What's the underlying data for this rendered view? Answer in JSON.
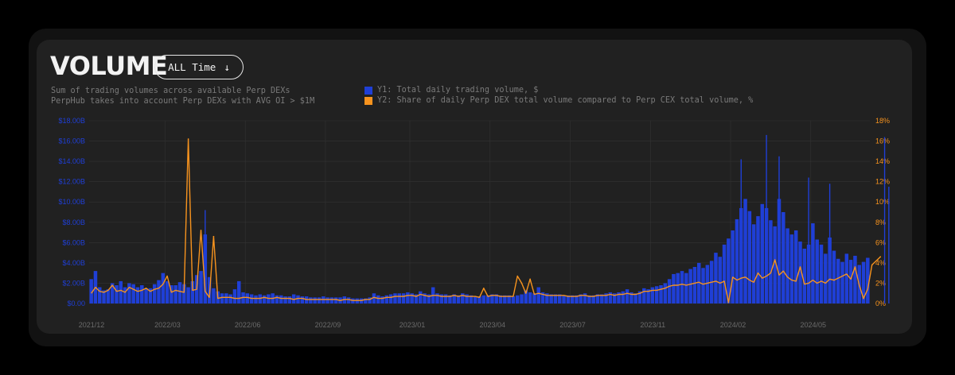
{
  "header": {
    "title": "VOLUME",
    "range_label": "ALL Time",
    "range_icon": "arrow-down-icon",
    "description_1": "Sum of trading volumes across available Perp DEXs",
    "description_2": "PerpHub takes into account Perp DEXs with AVG OI > $1M"
  },
  "legend": {
    "y1_label": "Y1: Total daily trading volume, $",
    "y2_label": "Y2: Share of daily Perp DEX total volume compared to Perp CEX total volume, %"
  },
  "colors": {
    "volume": "#1f3fd6",
    "share": "#f7931e",
    "grid": "#333333",
    "tick_x": "#6b6b6b"
  },
  "chart_data": {
    "type": "bar",
    "y_ticks": [
      "$0.00",
      "$2.00B",
      "$4.00B",
      "$6.00B",
      "$8.00B",
      "$10.00B",
      "$12.00B",
      "$14.00B",
      "$16.00B",
      "$18.00B"
    ],
    "y2_ticks": [
      "0%",
      "2%",
      "4%",
      "6%",
      "8%",
      "10%",
      "12%",
      "14%",
      "16%",
      "18%"
    ],
    "ylim": [
      0,
      18
    ],
    "y2lim": [
      0,
      18
    ],
    "x_ticks": [
      "2021/12",
      "2022/03",
      "2022/06",
      "2022/09",
      "2023/01",
      "2023/04",
      "2023/07",
      "2023/11",
      "2024/02",
      "2024/05"
    ],
    "x_tick_index": [
      0,
      18,
      37,
      56,
      76,
      95,
      114,
      133,
      152,
      171
    ],
    "series": [
      {
        "name": "Y1: Total daily trading volume, $",
        "axis": "y1",
        "unit": "$B",
        "values": [
          2.4,
          3.2,
          1.6,
          1.3,
          1.4,
          2.0,
          1.8,
          2.2,
          1.6,
          2.0,
          1.9,
          1.6,
          1.8,
          1.5,
          1.5,
          1.9,
          2.3,
          3.0,
          2.2,
          1.8,
          1.8,
          2.1,
          1.9,
          1.6,
          2.2,
          2.8,
          3.2,
          6.8,
          2.6,
          1.5,
          1.2,
          1.0,
          1.0,
          0.9,
          1.4,
          2.2,
          1.1,
          1.0,
          0.9,
          0.8,
          0.9,
          0.8,
          0.9,
          1.0,
          0.8,
          0.8,
          0.7,
          0.7,
          0.9,
          0.8,
          0.7,
          0.7,
          0.6,
          0.6,
          0.6,
          0.7,
          0.6,
          0.6,
          0.6,
          0.6,
          0.7,
          0.6,
          0.5,
          0.5,
          0.5,
          0.5,
          0.6,
          1.0,
          0.8,
          0.7,
          0.8,
          0.9,
          1.0,
          1.0,
          1.0,
          1.1,
          1.0,
          0.9,
          1.2,
          1.0,
          0.9,
          1.6,
          1.0,
          0.9,
          0.9,
          0.8,
          0.9,
          0.8,
          1.0,
          0.9,
          0.8,
          0.7,
          0.7,
          0.8,
          0.8,
          0.9,
          0.9,
          0.8,
          0.8,
          0.8,
          0.7,
          0.8,
          0.9,
          1.3,
          1.1,
          1.0,
          1.6,
          1.1,
          1.0,
          0.9,
          0.9,
          0.9,
          0.8,
          0.8,
          0.8,
          0.8,
          0.9,
          1.0,
          0.8,
          0.8,
          0.9,
          0.9,
          1.0,
          1.1,
          1.0,
          1.1,
          1.2,
          1.4,
          1.1,
          1.0,
          1.2,
          1.5,
          1.4,
          1.6,
          1.7,
          1.8,
          2.0,
          2.4,
          2.9,
          3.0,
          3.2,
          3.0,
          3.4,
          3.6,
          4.0,
          3.5,
          3.8,
          4.2,
          5.0,
          4.6,
          5.8,
          6.4,
          7.2,
          8.3,
          9.4,
          10.3,
          9.1,
          7.8,
          8.6,
          9.8,
          9.4,
          8.2,
          7.6,
          10.3,
          9.0,
          7.4,
          6.8,
          7.2,
          6.1,
          5.4,
          5.8,
          7.9,
          6.3,
          5.8,
          4.9,
          6.5,
          5.2,
          4.4,
          4.1,
          4.9,
          4.3,
          4.7,
          3.8,
          4.1,
          4.5
        ]
      },
      {
        "name": "Y2: Share of daily Perp DEX total volume compared to Perp CEX total volume, %",
        "axis": "y2",
        "unit": "%",
        "values": [
          1.0,
          1.6,
          1.2,
          1.1,
          1.3,
          1.8,
          1.2,
          1.3,
          1.1,
          1.6,
          1.4,
          1.2,
          1.3,
          1.2,
          1.2,
          1.4,
          1.5,
          1.9,
          1.2,
          1.1,
          1.3,
          1.2,
          1.1,
          1.2,
          1.3,
          1.4,
          1.5,
          1.2,
          0.6,
          0.5,
          0.5,
          0.6,
          0.6,
          0.6,
          0.5,
          0.5,
          0.6,
          0.6,
          0.5,
          0.5,
          0.5,
          0.6,
          0.5,
          0.5,
          0.6,
          0.5,
          0.5,
          0.5,
          0.4,
          0.5,
          0.5,
          0.4,
          0.4,
          0.4,
          0.4,
          0.4,
          0.4,
          0.4,
          0.4,
          0.3,
          0.4,
          0.4,
          0.3,
          0.3,
          0.3,
          0.4,
          0.4,
          0.6,
          0.5,
          0.5,
          0.6,
          0.6,
          0.7,
          0.7,
          0.7,
          0.8,
          0.8,
          0.7,
          0.9,
          0.8,
          0.7,
          0.8,
          0.8,
          0.7,
          0.7,
          0.7,
          0.8,
          0.7,
          0.8,
          0.7,
          0.7,
          0.7,
          0.6,
          0.7,
          0.7,
          0.8,
          0.8,
          0.7,
          0.7,
          0.7,
          0.7,
          0.7,
          0.8,
          1.0,
          0.9,
          0.9,
          1.0,
          0.9,
          0.8,
          0.8,
          0.8,
          0.8,
          0.8,
          0.7,
          0.7,
          0.7,
          0.8,
          0.8,
          0.7,
          0.7,
          0.8,
          0.8,
          0.8,
          0.9,
          0.8,
          0.9,
          0.9,
          1.0,
          0.9,
          0.9,
          1.0,
          1.2,
          1.2,
          1.3,
          1.3,
          1.4,
          1.5,
          1.7,
          1.8,
          1.8,
          1.9,
          1.8,
          1.9,
          2.0,
          2.1,
          1.9,
          2.0,
          2.1,
          2.2,
          2.0,
          2.2,
          2.4,
          2.6,
          2.3,
          2.5,
          2.6,
          2.3,
          2.1,
          2.2,
          2.5,
          2.7,
          3.0,
          3.4,
          2.8,
          3.2,
          2.6,
          2.3,
          2.2,
          2.1,
          1.9,
          2.0,
          2.3,
          2.0,
          2.2,
          2.0,
          2.4,
          2.6,
          2.5,
          2.7,
          2.9,
          2.4,
          2.0,
          1.8,
          1.5,
          1.4
        ]
      }
    ],
    "spikes": {
      "y1": [
        [
          27,
          9.2
        ],
        [
          154,
          14.2
        ],
        [
          160,
          16.6
        ],
        [
          163,
          14.5
        ],
        [
          170,
          12.4
        ],
        [
          175,
          11.8
        ],
        [
          188,
          16.4
        ],
        [
          189,
          11.5
        ]
      ],
      "y2": [
        [
          13,
          1.5
        ],
        [
          18,
          2.7
        ],
        [
          23,
          16.2
        ],
        [
          26,
          7.2
        ],
        [
          29,
          6.6
        ],
        [
          93,
          1.5
        ],
        [
          101,
          2.7
        ],
        [
          102,
          2.0
        ],
        [
          104,
          2.4
        ],
        [
          151,
          0.1
        ],
        [
          158,
          3.0
        ],
        [
          162,
          4.3
        ],
        [
          168,
          3.6
        ],
        [
          176,
          2.3
        ],
        [
          181,
          3.6
        ],
        [
          183,
          0.5
        ],
        [
          185,
          3.8
        ],
        [
          187,
          4.6
        ]
      ]
    },
    "grid": true,
    "legend_position": "top"
  }
}
